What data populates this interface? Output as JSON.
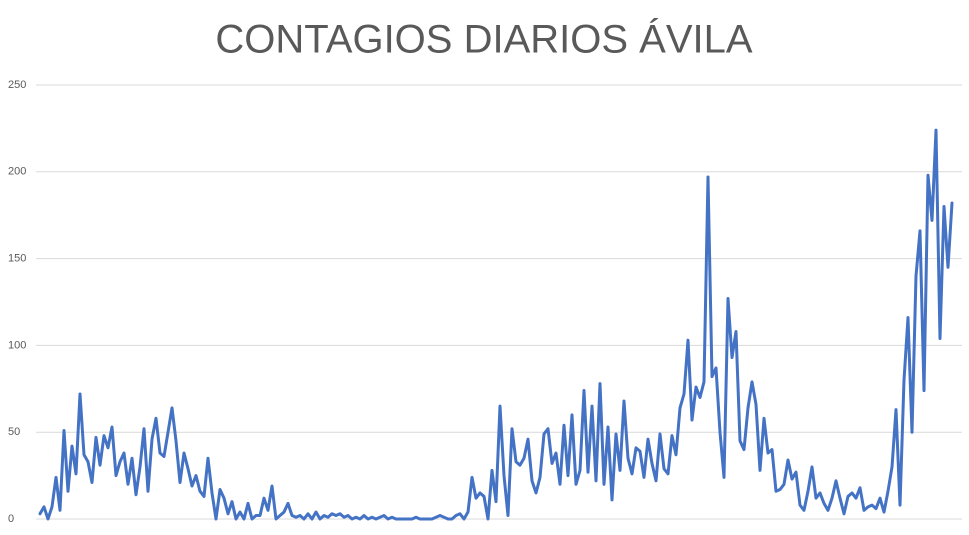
{
  "chart_data": {
    "type": "line",
    "title": "CONTAGIOS DIARIOS ÁVILA",
    "categories": [
      null,
      null,
      null,
      null,
      null,
      null,
      null,
      null,
      null,
      null,
      null,
      null,
      null,
      null,
      null,
      null,
      null,
      null,
      null,
      null,
      null,
      null,
      null,
      null,
      null,
      null,
      null,
      null,
      null,
      null,
      null,
      null,
      null,
      null,
      null,
      null,
      null,
      null,
      null,
      null,
      null,
      null,
      null,
      null,
      null,
      null,
      null,
      null,
      null,
      null,
      null,
      null,
      null,
      null,
      null,
      null,
      null,
      null,
      null,
      null,
      null,
      null,
      null,
      null,
      null,
      null,
      null,
      null,
      null,
      null,
      null,
      null,
      null,
      null,
      null,
      null,
      null,
      null,
      null,
      null,
      null,
      null,
      null,
      null,
      null,
      null,
      null,
      null,
      null,
      null,
      null,
      null,
      null,
      null,
      null,
      null,
      null,
      null,
      null,
      null,
      null,
      null,
      null,
      null,
      null,
      null,
      null,
      null,
      null,
      null,
      null,
      null,
      null,
      null,
      null,
      null,
      null,
      null,
      null,
      null,
      null,
      null,
      null,
      null,
      null,
      null,
      null,
      null,
      null,
      null,
      null,
      null,
      null,
      null,
      null,
      null,
      null,
      null,
      null,
      null,
      null,
      null,
      null,
      null,
      null,
      null,
      null,
      null,
      null,
      null,
      null,
      null,
      null,
      null,
      null,
      null,
      null,
      null,
      null,
      null,
      null,
      null,
      null,
      null,
      null,
      null,
      null,
      null,
      null,
      null,
      null,
      null,
      null,
      null,
      null,
      null,
      null,
      null,
      null,
      null,
      null,
      null,
      null,
      null,
      null,
      null,
      null,
      null,
      null,
      null,
      null,
      null,
      null,
      null,
      null,
      null,
      null,
      null,
      null,
      null,
      null,
      null,
      null,
      null,
      null,
      null,
      null,
      null,
      null,
      null,
      null,
      null,
      null,
      null,
      null,
      null,
      null,
      null,
      null,
      null,
      null,
      null,
      null,
      null,
      null,
      null,
      null,
      null,
      null
    ],
    "values": [
      3,
      7,
      0,
      7,
      24,
      5,
      51,
      16,
      42,
      26,
      72,
      37,
      33,
      21,
      47,
      31,
      48,
      41,
      53,
      25,
      33,
      38,
      20,
      35,
      14,
      30,
      52,
      16,
      46,
      58,
      38,
      36,
      50,
      64,
      45,
      21,
      38,
      29,
      19,
      25,
      16,
      13,
      35,
      15,
      0,
      17,
      12,
      3,
      10,
      0,
      4,
      0,
      9,
      0,
      2,
      2,
      12,
      5,
      19,
      0,
      2,
      4,
      9,
      2,
      1,
      2,
      0,
      3,
      0,
      4,
      0,
      2,
      1,
      3,
      2,
      3,
      1,
      2,
      0,
      1,
      0,
      2,
      0,
      1,
      0,
      1,
      2,
      0,
      1,
      0,
      0,
      0,
      0,
      0,
      1,
      0,
      0,
      0,
      0,
      1,
      2,
      1,
      0,
      0,
      2,
      3,
      0,
      4,
      24,
      12,
      15,
      13,
      0,
      28,
      10,
      65,
      25,
      2,
      52,
      33,
      31,
      35,
      46,
      22,
      15,
      24,
      49,
      52,
      32,
      38,
      20,
      54,
      25,
      60,
      20,
      28,
      74,
      27,
      65,
      22,
      78,
      20,
      53,
      11,
      49,
      28,
      68,
      35,
      26,
      41,
      39,
      24,
      46,
      32,
      22,
      49,
      29,
      26,
      48,
      37,
      64,
      72,
      103,
      57,
      76,
      70,
      79,
      197,
      82,
      87,
      50,
      24,
      127,
      93,
      108,
      45,
      40,
      64,
      79,
      66,
      28,
      58,
      38,
      40,
      16,
      17,
      20,
      34,
      23,
      27,
      8,
      5,
      16,
      30,
      12,
      15,
      9,
      5,
      12,
      22,
      12,
      3,
      13,
      15,
      12,
      18,
      5,
      7,
      8,
      6,
      12,
      4,
      16,
      30,
      63,
      8,
      80,
      116,
      50,
      140,
      166,
      74,
      198,
      172,
      224,
      104,
      180,
      145,
      182
    ],
    "color": "#4472c4",
    "ylim": [
      0,
      250
    ],
    "yticks": [
      0,
      50,
      100,
      150,
      200,
      250
    ],
    "grid": true
  }
}
